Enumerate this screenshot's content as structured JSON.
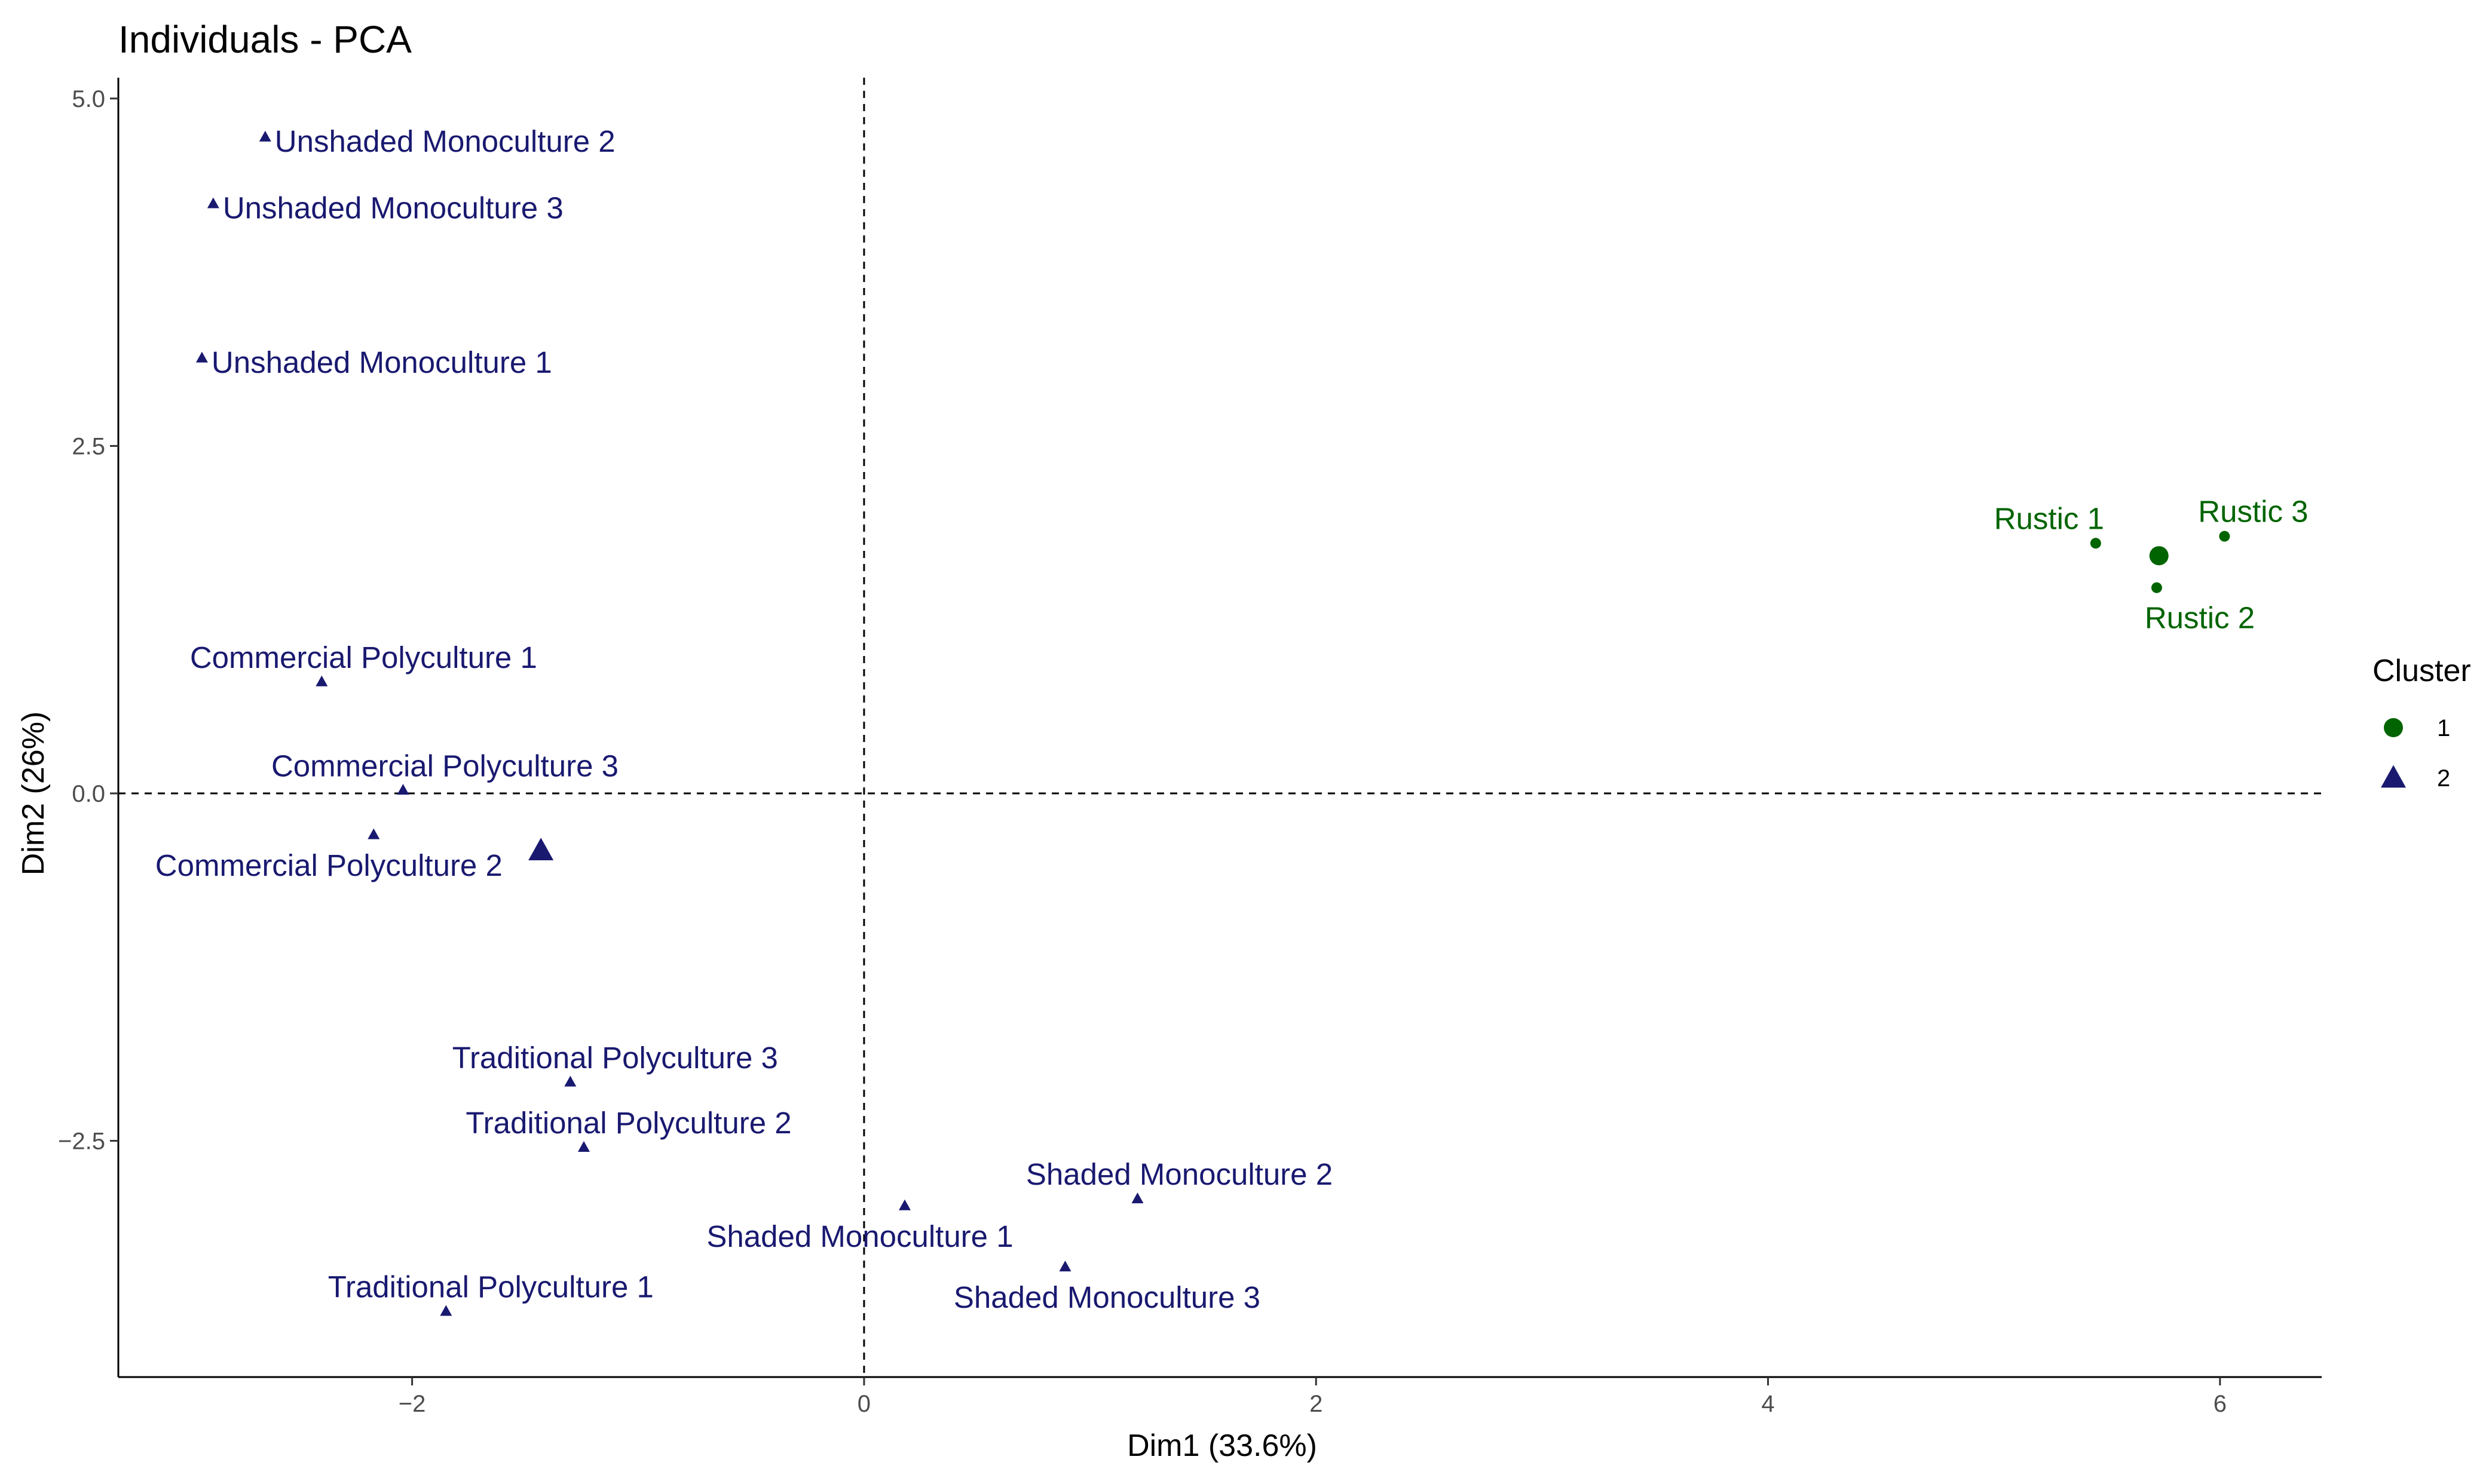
{
  "chart_data": {
    "type": "scatter",
    "title": "Individuals - PCA",
    "xlabel": "Dim1 (33.6%)",
    "ylabel": "Dim2 (26%)",
    "xlim": [
      -3.3,
      6.45
    ],
    "ylim": [
      -4.2,
      5.15
    ],
    "x_ticks": [
      -2,
      0,
      2,
      4,
      6
    ],
    "x_tick_labels": [
      "−2",
      "0",
      "2",
      "4",
      "6"
    ],
    "y_ticks": [
      -2.5,
      0,
      2.5,
      5
    ],
    "y_tick_labels": [
      "−2.5",
      "0.0",
      "2.5",
      "5.0"
    ],
    "reference_lines": {
      "x": 0,
      "y": 0,
      "style": "dashed"
    },
    "grid": false,
    "legend": {
      "title": "Cluster",
      "position": "right",
      "entries": [
        {
          "label": "1",
          "shape": "circle",
          "color": "#006400"
        },
        {
          "label": "2",
          "shape": "triangle",
          "color": "#191970"
        }
      ]
    },
    "series": [
      {
        "name": "1",
        "shape": "circle",
        "color": "#006400",
        "points": [
          {
            "label": "Rustic 1",
            "x": 5.45,
            "y": 1.8
          },
          {
            "label": "Rustic 2",
            "x": 5.72,
            "y": 1.48
          },
          {
            "label": "Rustic 3",
            "x": 6.02,
            "y": 1.85
          }
        ],
        "centroid": {
          "x": 5.73,
          "y": 1.71
        }
      },
      {
        "name": "2",
        "shape": "triangle",
        "color": "#191970",
        "points": [
          {
            "label": "Unshaded Monoculture 2",
            "x": -2.65,
            "y": 4.72
          },
          {
            "label": "Unshaded Monoculture 3",
            "x": -2.88,
            "y": 4.24
          },
          {
            "label": "Unshaded Monoculture 1",
            "x": -2.93,
            "y": 3.13
          },
          {
            "label": "Commercial Polyculture 1",
            "x": -2.4,
            "y": 0.8
          },
          {
            "label": "Commercial Polyculture 3",
            "x": -2.04,
            "y": 0.02
          },
          {
            "label": "Commercial Polyculture 2",
            "x": -2.17,
            "y": -0.3
          },
          {
            "label": "Traditional Polyculture 3",
            "x": -1.3,
            "y": -2.08
          },
          {
            "label": "Traditional Polyculture 2",
            "x": -1.24,
            "y": -2.55
          },
          {
            "label": "Traditional Polyculture 1",
            "x": -1.85,
            "y": -3.73
          },
          {
            "label": "Shaded Monoculture 1",
            "x": 0.18,
            "y": -2.97
          },
          {
            "label": "Shaded Monoculture 2",
            "x": 1.21,
            "y": -2.92
          },
          {
            "label": "Shaded Monoculture 3",
            "x": 0.89,
            "y": -3.41
          }
        ],
        "centroid": {
          "x": -1.43,
          "y": -0.42
        }
      }
    ]
  }
}
